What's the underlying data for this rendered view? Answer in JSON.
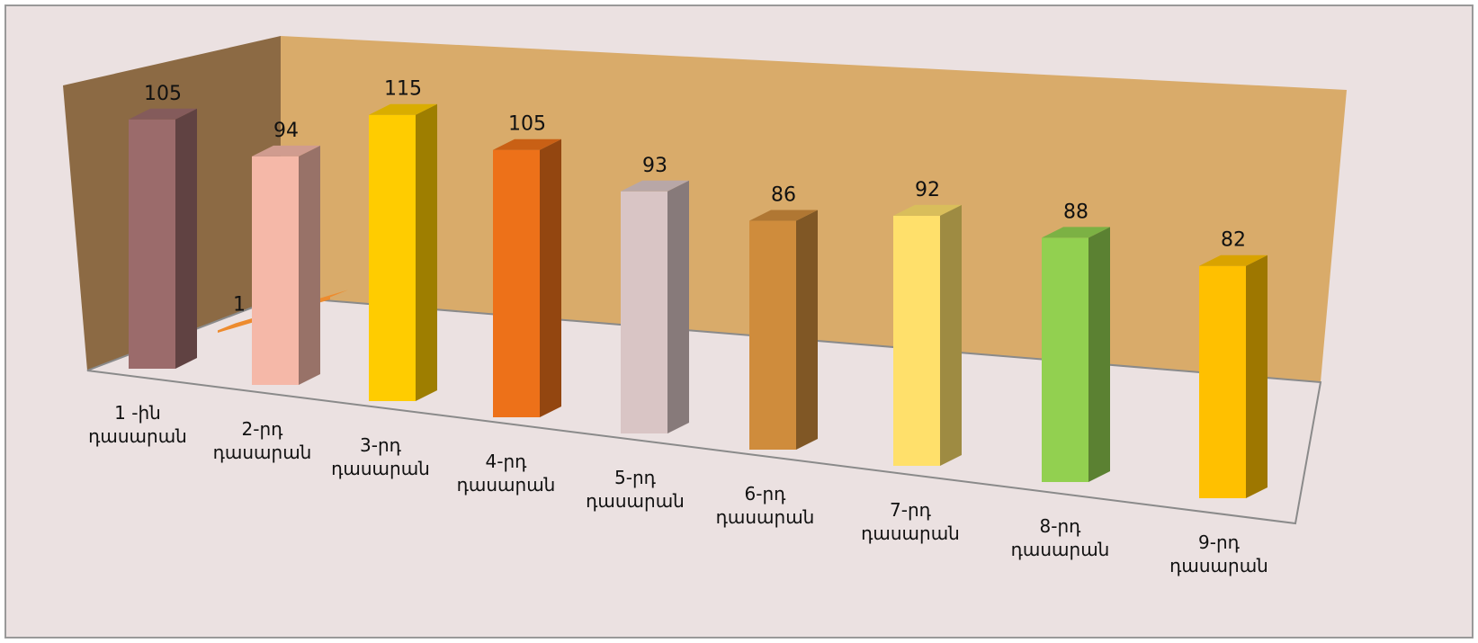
{
  "chart_data": {
    "type": "bar3d",
    "categories": [
      "1 -ին\nդասարան",
      "2-րդ\nդասարան",
      "3-րդ\nդասարան",
      "4-րդ\nդասարան",
      "5-րդ\nդասարան",
      "6-րդ\nդասարան",
      "7-րդ\nդասարան",
      "8-րդ\nդասարան",
      "9-րդ\nդասարան"
    ],
    "series": [
      {
        "colors": [
          "#9b6b6b",
          "#f5b8a8",
          "#ffcc00",
          "#ed7119",
          "#d9c5c5",
          "#cf8c3c",
          "#ffe06b",
          "#92d050",
          "#ffc000"
        ],
        "values": [
          105,
          94,
          115,
          105,
          93,
          86,
          92,
          88,
          82
        ]
      },
      {
        "color": "#ed8b2e",
        "values": [
          1,
          null,
          null,
          null,
          null,
          null,
          null,
          null,
          null
        ]
      }
    ]
  }
}
